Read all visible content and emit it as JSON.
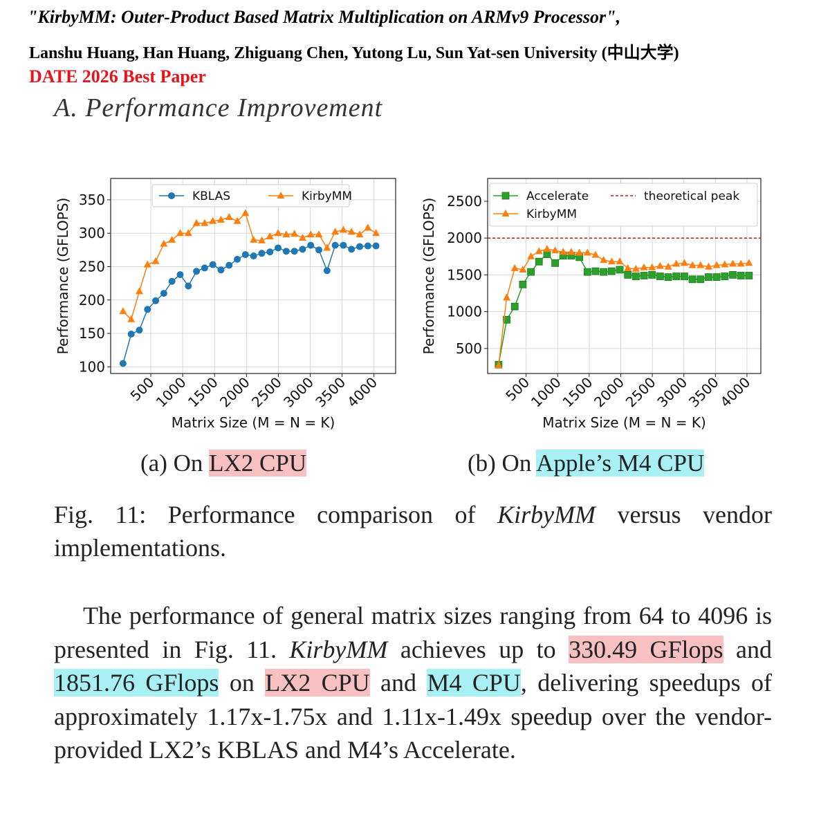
{
  "header": {
    "title": "\"KirbyMM: Outer-Product Based Matrix Multiplication on ARMv9 Processor\",",
    "authors": "Lanshu Huang, Han Huang, Zhiguang Chen, Yutong Lu, Sun Yat-sen University (中山大学)",
    "award": "DATE 2026 Best Paper"
  },
  "section_title": "A. Performance Improvement",
  "chart_data": [
    {
      "type": "line",
      "xlabel": "Matrix Size (M = N = K)",
      "ylabel": "Performance (GFLOPS)",
      "x": [
        64,
        192,
        320,
        448,
        576,
        704,
        832,
        960,
        1088,
        1216,
        1344,
        1472,
        1600,
        1728,
        1856,
        1984,
        2112,
        2240,
        2368,
        2496,
        2624,
        2752,
        2880,
        3008,
        3136,
        3264,
        3392,
        3520,
        3648,
        3776,
        3904,
        4032
      ],
      "series": [
        {
          "name": "KBLAS",
          "color": "#1f77b4",
          "marker": "circle",
          "values": [
            105,
            149,
            155,
            186,
            199,
            210,
            228,
            238,
            221,
            243,
            248,
            253,
            245,
            252,
            261,
            268,
            266,
            270,
            272,
            278,
            273,
            273,
            276,
            282,
            275,
            244,
            282,
            282,
            276,
            280,
            281,
            281
          ]
        },
        {
          "name": "KirbyMM",
          "color": "#ff7f0e",
          "marker": "triangle",
          "values": [
            183,
            171,
            213,
            253,
            258,
            284,
            290,
            300,
            300,
            315,
            315,
            318,
            320,
            324,
            318,
            330,
            290,
            289,
            295,
            300,
            298,
            299,
            293,
            298,
            298,
            278,
            302,
            305,
            302,
            298,
            308,
            300
          ]
        }
      ],
      "xlim": [
        -130,
        4340
      ],
      "ylim": [
        90,
        382
      ],
      "xticks": [
        500,
        1000,
        1500,
        2000,
        2500,
        3000,
        3500,
        4000
      ],
      "yticks": [
        100,
        150,
        200,
        250,
        300,
        350
      ],
      "grid": true,
      "legend": "upper center"
    },
    {
      "type": "line",
      "xlabel": "Matrix Size (M = N = K)",
      "ylabel": "Performance (GFLOPS)",
      "x": [
        64,
        192,
        320,
        448,
        576,
        704,
        832,
        960,
        1088,
        1216,
        1344,
        1472,
        1600,
        1728,
        1856,
        1984,
        2112,
        2240,
        2368,
        2496,
        2624,
        2752,
        2880,
        3008,
        3136,
        3264,
        3392,
        3520,
        3648,
        3776,
        3904,
        4032
      ],
      "series": [
        {
          "name": "Accelerate",
          "color": "#2ca02c",
          "marker": "square",
          "values": [
            280,
            890,
            1070,
            1370,
            1540,
            1680,
            1780,
            1660,
            1760,
            1760,
            1740,
            1540,
            1550,
            1540,
            1550,
            1570,
            1500,
            1480,
            1490,
            1500,
            1480,
            1470,
            1480,
            1480,
            1440,
            1440,
            1470,
            1470,
            1480,
            1500,
            1490,
            1490
          ]
        },
        {
          "name": "KirbyMM",
          "color": "#ff7f0e",
          "marker": "triangle",
          "values": [
            270,
            1190,
            1590,
            1570,
            1750,
            1820,
            1850,
            1830,
            1810,
            1810,
            1800,
            1800,
            1770,
            1700,
            1680,
            1680,
            1590,
            1580,
            1600,
            1600,
            1620,
            1610,
            1650,
            1660,
            1630,
            1630,
            1610,
            1630,
            1640,
            1650,
            1650,
            1660
          ]
        }
      ],
      "reference_lines": [
        {
          "name": "theoretical peak",
          "value": 2000,
          "color": "#b22222"
        }
      ],
      "xlim": [
        -110,
        4220
      ],
      "ylim": [
        160,
        2810
      ],
      "xticks": [
        500,
        1000,
        1500,
        2000,
        2500,
        3000,
        3500,
        4000
      ],
      "yticks": [
        500,
        1000,
        1500,
        2000,
        2500
      ],
      "grid": true,
      "legend": "upper left"
    }
  ],
  "subcaptions": [
    {
      "label": "(a) On",
      "highlight": "LX2 CPU"
    },
    {
      "label": "(b) On",
      "highlight": "Apple’s M4 CPU"
    }
  ],
  "figure_caption": [
    {
      "text": "Fig. 11: Performance comparison of ",
      "style": "plain"
    },
    {
      "text": "KirbyMM",
      "style": "italic"
    },
    {
      "text": " versus vendor implementations.",
      "style": "plain"
    }
  ],
  "paragraph": [
    {
      "text": "The performance of general matrix sizes ranging from 64 to 4096 is presented in Fig. 11. ",
      "style": "plain"
    },
    {
      "text": "KirbyMM",
      "style": "italic"
    },
    {
      "text": " achieves up to ",
      "style": "plain"
    },
    {
      "text": "330.49 GFlops",
      "style": "red"
    },
    {
      "text": " and ",
      "style": "plain"
    },
    {
      "text": "1851.76 GFlops",
      "style": "cyan"
    },
    {
      "text": " on ",
      "style": "plain"
    },
    {
      "text": "LX2 CPU",
      "style": "red"
    },
    {
      "text": " and ",
      "style": "plain"
    },
    {
      "text": "M4 CPU",
      "style": "cyan"
    },
    {
      "text": ", delivering speedups of approximately 1.17x-1.75x and 1.11x-1.49x speedup over the vendor-provided LX2’s KBLAS and M4’s Accelerate.",
      "style": "plain"
    }
  ]
}
